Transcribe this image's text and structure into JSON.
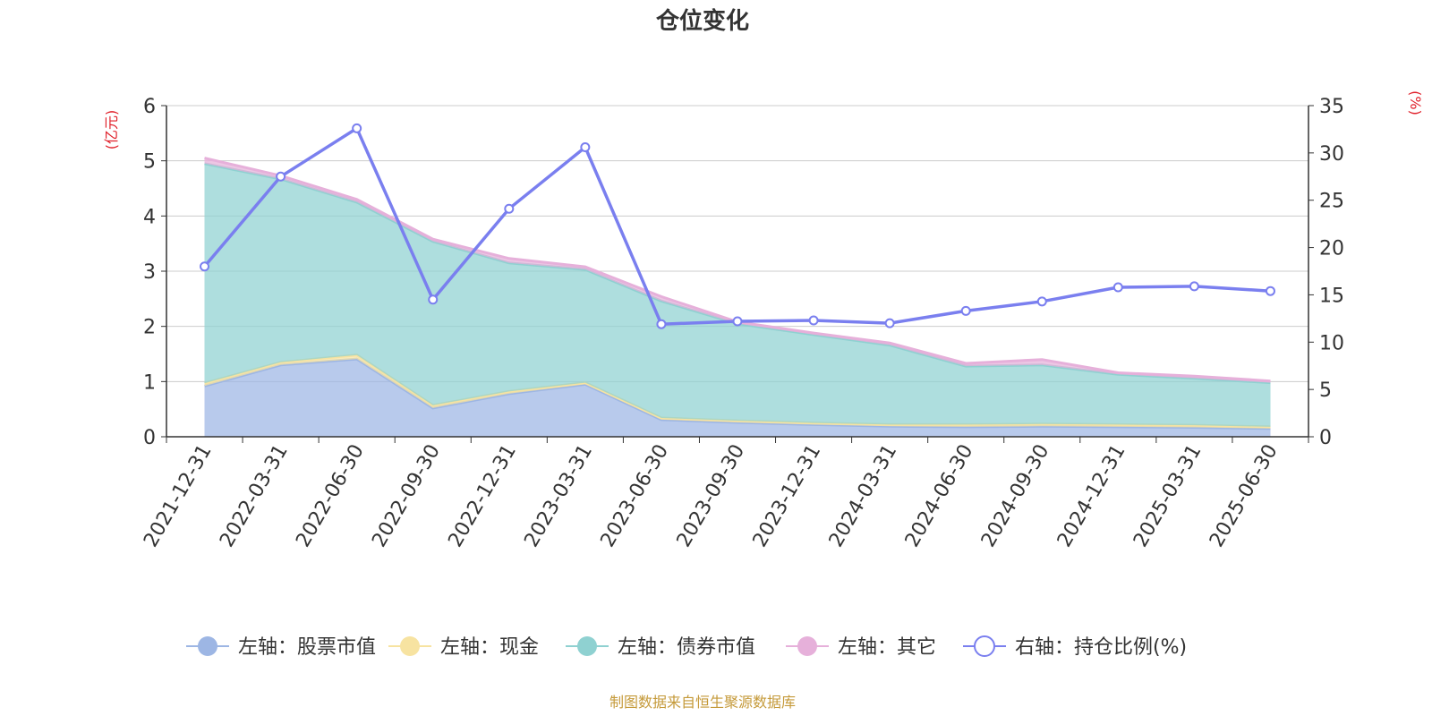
{
  "colors": {
    "stock": "#9db6e4",
    "cash": "#f7e3a1",
    "bond": "#8fd1d1",
    "other": "#e6b0da",
    "ratio": "#7a7fef",
    "unit_label": "#e0202a",
    "source": "#c59a3a",
    "grid": "#cccccc",
    "axis": "#333333"
  },
  "chart_data": {
    "type": "area",
    "title": "仓位变化",
    "left_unit": "(亿元)",
    "right_unit": "(%)",
    "source_note": "制图数据来自恒生聚源数据库",
    "categories": [
      "2021-12-31",
      "2022-03-31",
      "2022-06-30",
      "2022-09-30",
      "2022-12-31",
      "2023-03-31",
      "2023-06-30",
      "2023-09-30",
      "2023-12-31",
      "2024-03-31",
      "2024-06-30",
      "2024-09-30",
      "2024-12-31",
      "2025-03-31",
      "2025-06-30"
    ],
    "left_axis": {
      "min": 0,
      "max": 6,
      "ticks": [
        "0",
        "1",
        "2",
        "3",
        "4",
        "5",
        "6"
      ]
    },
    "right_axis": {
      "min": 0,
      "max": 35,
      "ticks": [
        "0",
        "5",
        "10",
        "15",
        "20",
        "25",
        "30",
        "35"
      ]
    },
    "grid": true,
    "legend_position": "bottom",
    "series": [
      {
        "name": "左轴：股票市值",
        "key": "stock",
        "axis": "left",
        "stacked": true,
        "values": [
          0.92,
          1.3,
          1.41,
          0.52,
          0.78,
          0.95,
          0.31,
          0.26,
          0.22,
          0.19,
          0.18,
          0.19,
          0.18,
          0.17,
          0.15
        ]
      },
      {
        "name": "左轴：现金",
        "key": "cash",
        "axis": "left",
        "stacked": true,
        "values": [
          0.05,
          0.05,
          0.07,
          0.05,
          0.04,
          0.03,
          0.03,
          0.03,
          0.03,
          0.03,
          0.04,
          0.04,
          0.04,
          0.04,
          0.03
        ]
      },
      {
        "name": "左轴：债券市值",
        "key": "bond",
        "axis": "left",
        "stacked": true,
        "values": [
          3.98,
          3.32,
          2.77,
          2.97,
          2.33,
          2.05,
          2.12,
          1.76,
          1.6,
          1.44,
          1.06,
          1.07,
          0.91,
          0.85,
          0.8
        ]
      },
      {
        "name": "左轴：其它",
        "key": "other",
        "axis": "left",
        "stacked": true,
        "values": [
          0.1,
          0.06,
          0.05,
          0.04,
          0.08,
          0.05,
          0.08,
          0.03,
          0.03,
          0.04,
          0.05,
          0.1,
          0.03,
          0.04,
          0.03
        ]
      },
      {
        "name": "右轴：持仓比例(%)",
        "key": "ratio",
        "axis": "right",
        "stacked": false,
        "values": [
          18.0,
          27.5,
          32.6,
          14.5,
          24.1,
          30.6,
          11.9,
          12.2,
          12.3,
          12.0,
          13.3,
          14.3,
          15.8,
          15.9,
          15.4
        ]
      }
    ]
  }
}
